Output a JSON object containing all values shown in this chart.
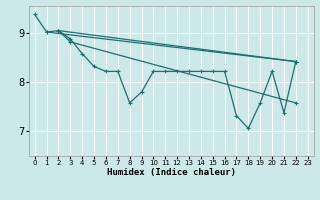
{
  "xlabel": "Humidex (Indice chaleur)",
  "bg_color": "#cce8e8",
  "grid_color": "#ffffff",
  "red_line_color": "#ee9999",
  "line_color": "#1a7070",
  "xlim": [
    -0.5,
    23.5
  ],
  "ylim": [
    6.5,
    9.55
  ],
  "yticks": [
    7,
    8,
    9
  ],
  "xticks": [
    0,
    1,
    2,
    3,
    4,
    5,
    6,
    7,
    8,
    9,
    10,
    11,
    12,
    13,
    14,
    15,
    16,
    17,
    18,
    19,
    20,
    21,
    22,
    23
  ],
  "lines": [
    {
      "x": [
        0,
        1,
        2,
        22
      ],
      "y": [
        9.38,
        9.02,
        9.05,
        8.42
      ]
    },
    {
      "x": [
        2,
        3,
        4,
        5,
        6,
        7,
        8,
        9,
        10,
        11,
        12,
        13,
        14,
        15,
        16,
        17,
        18,
        19,
        20,
        21,
        22
      ],
      "y": [
        9.05,
        8.88,
        8.58,
        8.32,
        8.22,
        8.22,
        7.58,
        7.8,
        8.22,
        8.22,
        8.22,
        8.22,
        8.22,
        8.22,
        8.22,
        7.32,
        7.06,
        7.58,
        8.22,
        7.38,
        8.42
      ]
    },
    {
      "x": [
        1,
        22
      ],
      "y": [
        9.02,
        8.42
      ]
    },
    {
      "x": [
        2,
        3,
        22
      ],
      "y": [
        9.05,
        8.82,
        7.58
      ]
    }
  ]
}
